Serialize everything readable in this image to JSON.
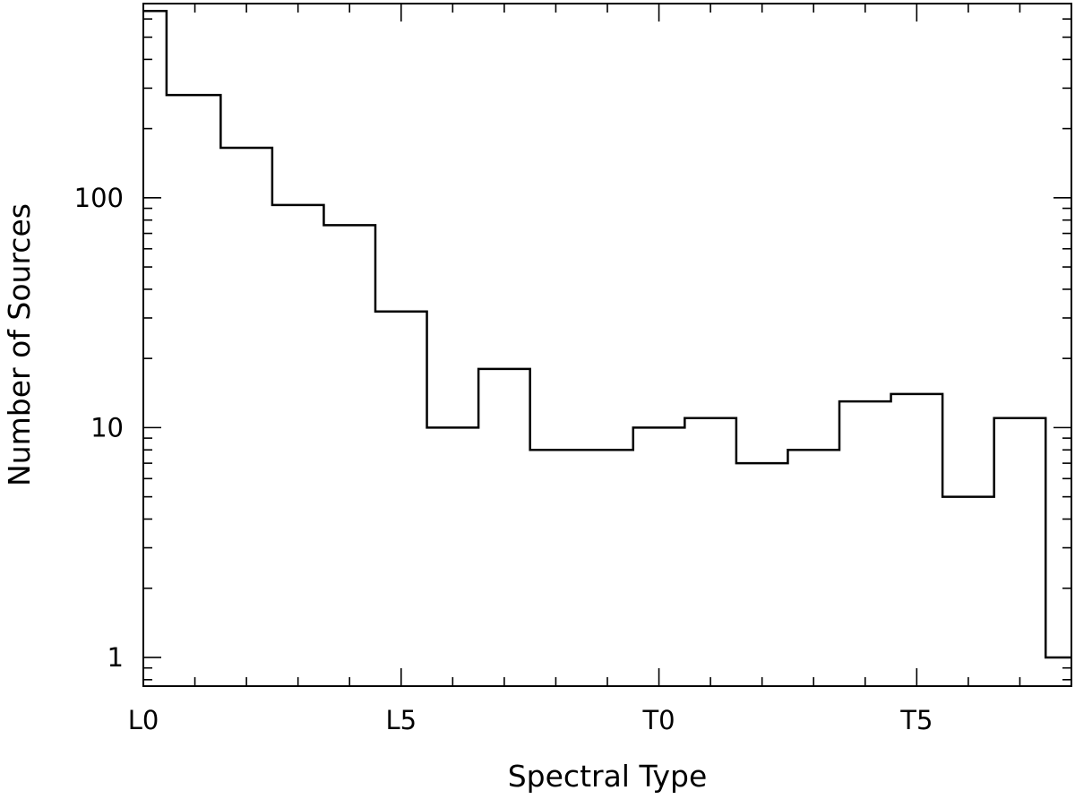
{
  "chart_data": {
    "type": "bar",
    "style": "step histogram",
    "xlabel": "Spectral Type",
    "ylabel": "Number of Sources",
    "yscale": "log",
    "ylim": [
      0.75,
      700
    ],
    "xlim": [
      0,
      18
    ],
    "x_ticks": [
      {
        "value": 0,
        "label": "L0"
      },
      {
        "value": 5,
        "label": "L5"
      },
      {
        "value": 10,
        "label": "T0"
      },
      {
        "value": 15,
        "label": "T5"
      }
    ],
    "y_ticks": [
      {
        "value": 1,
        "label": "1"
      },
      {
        "value": 10,
        "label": "10"
      },
      {
        "value": 100,
        "label": "100"
      }
    ],
    "bins": [
      {
        "from": 0.0,
        "to": 0.45,
        "value": 650
      },
      {
        "from": 0.45,
        "to": 1.5,
        "value": 280
      },
      {
        "from": 1.5,
        "to": 2.5,
        "value": 165
      },
      {
        "from": 2.5,
        "to": 3.5,
        "value": 93
      },
      {
        "from": 3.5,
        "to": 4.5,
        "value": 76
      },
      {
        "from": 4.5,
        "to": 5.5,
        "value": 32
      },
      {
        "from": 5.5,
        "to": 6.5,
        "value": 10
      },
      {
        "from": 6.5,
        "to": 7.5,
        "value": 18
      },
      {
        "from": 7.5,
        "to": 9.5,
        "value": 8
      },
      {
        "from": 9.5,
        "to": 10.5,
        "value": 10
      },
      {
        "from": 10.5,
        "to": 11.5,
        "value": 11
      },
      {
        "from": 11.5,
        "to": 12.5,
        "value": 7
      },
      {
        "from": 12.5,
        "to": 13.5,
        "value": 8
      },
      {
        "from": 13.5,
        "to": 14.5,
        "value": 13
      },
      {
        "from": 14.5,
        "to": 15.5,
        "value": 14
      },
      {
        "from": 15.5,
        "to": 16.5,
        "value": 5
      },
      {
        "from": 16.5,
        "to": 17.5,
        "value": 11
      },
      {
        "from": 17.5,
        "to": 18.0,
        "value": 1
      }
    ]
  }
}
